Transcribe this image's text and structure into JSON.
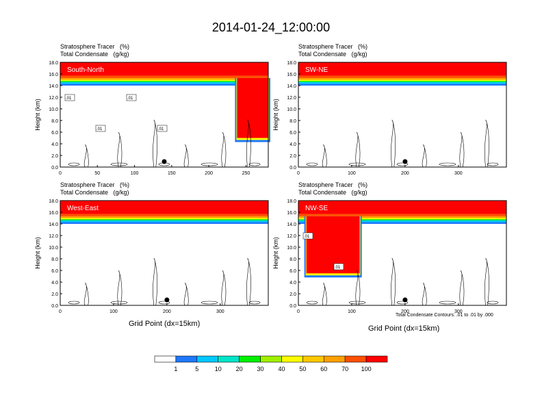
{
  "title": "2014-01-24_12:00:00",
  "panel_subtitle_1": "Stratosphere Tracer   (%)",
  "panel_subtitle_2": "Total Condensate   (g/kg)",
  "contour_note": "Total Condensate Contours: .01 to .01 by .000",
  "colors": {
    "levels": [
      "#ffffff",
      "#1e78ff",
      "#00c8ff",
      "#00e6c8",
      "#00f000",
      "#a0f000",
      "#ffff00",
      "#ffc800",
      "#ffa000",
      "#ff5000",
      "#ff0000"
    ],
    "contour": "#000000"
  },
  "colorbar": {
    "labels": [
      "1",
      "5",
      "10",
      "20",
      "30",
      "40",
      "50",
      "60",
      "70",
      "100"
    ]
  },
  "chart_data": [
    {
      "type": "heatmap",
      "name_label": "South-North",
      "xlabel": "",
      "ylabel": "Height (km)",
      "xlim": [
        0,
        280
      ],
      "ylim": [
        0,
        18
      ],
      "xticks": [
        "0",
        "50",
        "100",
        "150",
        "200",
        "250"
      ],
      "yticks": [
        "0.0",
        "2.0",
        "4.0",
        "6.0",
        "8.0",
        "10.0",
        "12.0",
        "14.0",
        "16.0",
        "18.0"
      ],
      "tropopause_km": 14.5,
      "intrusion": {
        "x": [
          238,
          280
        ],
        "base_km": 5.0
      },
      "contour_labels": [
        ".01",
        ".01",
        ".01",
        ".01"
      ],
      "marker_x": 140
    },
    {
      "type": "heatmap",
      "name_label": "SW-NE",
      "xlabel": "",
      "ylabel": "Height (km)",
      "xlim": [
        0,
        390
      ],
      "ylim": [
        0,
        18
      ],
      "xticks": [
        "0",
        "100",
        "200",
        "300"
      ],
      "yticks": [
        "0.0",
        "2.0",
        "4.0",
        "6.0",
        "8.0",
        "10.0",
        "12.0",
        "14.0",
        "16.0",
        "18.0"
      ],
      "tropopause_km": 14.5,
      "contour_labels": [],
      "marker_x": 200
    },
    {
      "type": "heatmap",
      "name_label": "West-East",
      "xlabel": "Grid Point (dx=15km)",
      "ylabel": "Height (km)",
      "xlim": [
        0,
        390
      ],
      "ylim": [
        0,
        18
      ],
      "xticks": [
        "0",
        "100",
        "200",
        "300"
      ],
      "yticks": [
        "0.0",
        "2.0",
        "4.0",
        "6.0",
        "8.0",
        "10.0",
        "12.0",
        "14.0",
        "16.0",
        "18.0"
      ],
      "tropopause_km": 14.5,
      "contour_labels": [],
      "marker_x": 200
    },
    {
      "type": "heatmap",
      "name_label": "NW-SE",
      "xlabel": "Grid Point (dx=15km)",
      "ylabel": "Height (km)",
      "xlim": [
        0,
        390
      ],
      "ylim": [
        0,
        18
      ],
      "xticks": [
        "0",
        "100",
        "200",
        "300"
      ],
      "yticks": [
        "0.0",
        "2.0",
        "4.0",
        "6.0",
        "8.0",
        "10.0",
        "12.0",
        "14.0",
        "16.0",
        "18.0"
      ],
      "tropopause_km": 14.5,
      "intrusion": {
        "x": [
          15,
          115
        ],
        "base_km": 5.5
      },
      "contour_labels": [
        ".01",
        ".01"
      ],
      "marker_x": 200
    }
  ]
}
